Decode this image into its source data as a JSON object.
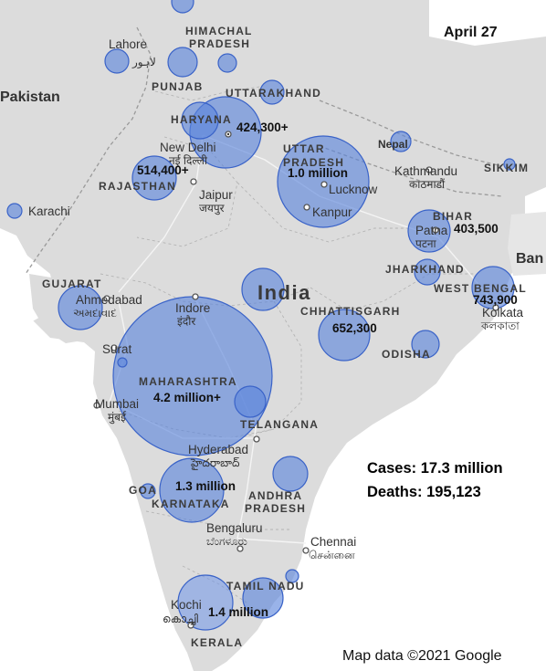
{
  "date_label": "April 27",
  "summary": {
    "cases": "Cases: 17.3 million",
    "deaths": "Deaths: 195,123"
  },
  "attribution": "Map data ©2021 Google",
  "countries": {
    "pakistan": "Pakistan",
    "nepal": "Nepal",
    "india": "India",
    "bangladesh_partial": "Ban"
  },
  "states": {
    "himachal_1": "HIMACHAL",
    "himachal_2": "PRADESH",
    "punjab": "PUNJAB",
    "uttarakhand": "UTTARAKHAND",
    "haryana": "HARYANA",
    "uttar_pradesh_1": "UTTAR",
    "uttar_pradesh_2": "PRADESH",
    "rajasthan": "RAJASTHAN",
    "sikkim": "SIKKIM",
    "bihar": "BIHAR",
    "jharkhand": "JHARKHAND",
    "west_bengal_1": "WEST",
    "west_bengal_2": "BENGAL",
    "gujarat": "GUJARAT",
    "chhattisgarh": "CHHATTISGARH",
    "odisha": "ODISHA",
    "maharashtra": "MAHARASHTRA",
    "telangana": "TELANGANA",
    "goa": "GOA",
    "andhra_1": "ANDHRA",
    "andhra_2": "PRADESH",
    "karnataka": "KARNATAKA",
    "tamil_nadu": "TAMIL NADU",
    "kerala": "KERALA"
  },
  "cities": {
    "lahore": "Lahore",
    "lahore_urdu": "لاہور",
    "new_delhi": "New Delhi",
    "new_delhi_hi": "नई दिल्ली",
    "jaipur": "Jaipur",
    "jaipur_hi": "जयपुर",
    "karachi": "Karachi",
    "lucknow": "Lucknow",
    "kanpur": "Kanpur",
    "kathmandu": "Kathmandu",
    "kathmandu_ne": "काठमाडौं",
    "patna": "Patna",
    "patna_hi": "पटना",
    "kolkata": "Kolkata",
    "kolkata_bn": "কলকাতা",
    "ahmedabad": "Ahmedabad",
    "ahmedabad_gu": "અમદાવાદ",
    "indore": "Indore",
    "indore_hi": "इंदौर",
    "surat": "Surat",
    "mumbai": "Mumbai",
    "mumbai_mr": "मुंबई",
    "hyderabad": "Hyderabad",
    "hyderabad_te": "హైదరాబాద్",
    "bengaluru": "Bengaluru",
    "bengaluru_kn": "ಬೆಂಗಳೂರು",
    "chennai": "Chennai",
    "chennai_ta": "சென்னை",
    "kochi": "Kochi",
    "kochi_ml": "കൊച്ചി"
  },
  "case_labels": {
    "haryana": "424,300+",
    "uttar_pradesh": "1.0 million",
    "rajasthan": "514,400+",
    "bihar": "403,500",
    "west_bengal": "743,900",
    "chhattisgarh": "652,300",
    "maharashtra": "4.2 million+",
    "karnataka": "1.3 million",
    "kerala": "1.4 million"
  },
  "colors": {
    "land": "#dcdcdc",
    "sea": "#ffffff",
    "bubble_fill": "#5b84dc",
    "bubble_stroke": "#3a63c8"
  }
}
